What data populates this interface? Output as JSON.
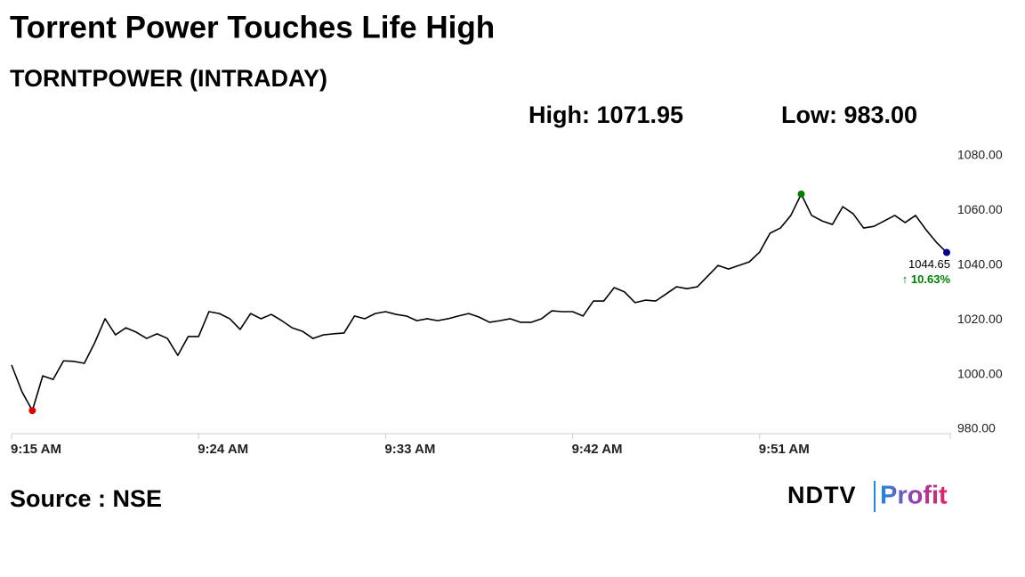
{
  "chart_data": {
    "type": "line",
    "title": "Torrent Power Touches Life High",
    "subtitle": "TORNTPOWER (INTRADAY)",
    "high_label": "High: 1071.95",
    "low_label": "Low: 983.00",
    "last_value": 1044.65,
    "change_label": "↑ 10.63%",
    "source": "Source : NSE",
    "logo": [
      "NDTV",
      "Profit"
    ],
    "categories": [
      "9:15 AM",
      null,
      null,
      null,
      null,
      null,
      null,
      null,
      null,
      null,
      null,
      null,
      null,
      null,
      null,
      null,
      null,
      null,
      "9:24 AM",
      null,
      null,
      null,
      null,
      null,
      null,
      null,
      null,
      null,
      null,
      null,
      null,
      null,
      null,
      null,
      null,
      null,
      "9:33 AM",
      null,
      null,
      null,
      null,
      null,
      null,
      null,
      null,
      null,
      null,
      null,
      null,
      null,
      null,
      null,
      null,
      null,
      "9:42 AM",
      null,
      null,
      null,
      null,
      null,
      null,
      null,
      null,
      null,
      null,
      null,
      null,
      null,
      null,
      null,
      null,
      null,
      "9:51 AM",
      null,
      null,
      null,
      null,
      null,
      null,
      null,
      null,
      null,
      null,
      null,
      null,
      null,
      null,
      null,
      null,
      null,
      null
    ],
    "series": [
      {
        "name": "TORNTPOWER",
        "color": "#000000",
        "values": [
          1003.5,
          993.7,
          986.8,
          999.5,
          998.2,
          1005,
          1004.8,
          1004.1,
          1011.6,
          1020.4,
          1014.5,
          1017.1,
          1015.5,
          1013.2,
          1014.9,
          1013.2,
          1007,
          1013.9,
          1013.9,
          1023,
          1022.3,
          1020.4,
          1016.5,
          1022.3,
          1020.4,
          1022,
          1019.7,
          1017.1,
          1015.8,
          1013.2,
          1014.5,
          1014.9,
          1015.2,
          1021.4,
          1020.4,
          1022.3,
          1023,
          1022,
          1021.4,
          1019.7,
          1020.4,
          1019.7,
          1020.4,
          1021.4,
          1022.3,
          1021,
          1019.1,
          1019.7,
          1020.4,
          1019.1,
          1019.1,
          1020.4,
          1023.3,
          1023,
          1023,
          1021.4,
          1026.9,
          1026.9,
          1031.8,
          1030.2,
          1026.3,
          1027.2,
          1026.9,
          1029.5,
          1032.1,
          1031.4,
          1032.1,
          1036,
          1039.9,
          1038.6,
          1039.9,
          1041.2,
          1044.8,
          1051.7,
          1053.6,
          1058.2,
          1066,
          1058.2,
          1056.2,
          1054.9,
          1061.4,
          1058.8,
          1053.6,
          1054.2,
          1056.2,
          1058.2,
          1055.6,
          1058.2,
          1053,
          1048.4,
          1044.65
        ]
      }
    ],
    "low_color": "#e00000",
    "high_color": "#008000",
    "last_color": "#00008b",
    "change_color": "#008000",
    "ylim": [
      980,
      1080
    ],
    "yticks": [
      {
        "value": 980,
        "label": "980.00"
      },
      {
        "value": 1000,
        "label": "1000.00"
      },
      {
        "value": 1020,
        "label": "1020.00"
      },
      {
        "value": 1040,
        "label": "1040.00"
      },
      {
        "value": 1060,
        "label": "1060.00"
      },
      {
        "value": 1080,
        "label": "1080.00"
      }
    ],
    "grid": false
  }
}
